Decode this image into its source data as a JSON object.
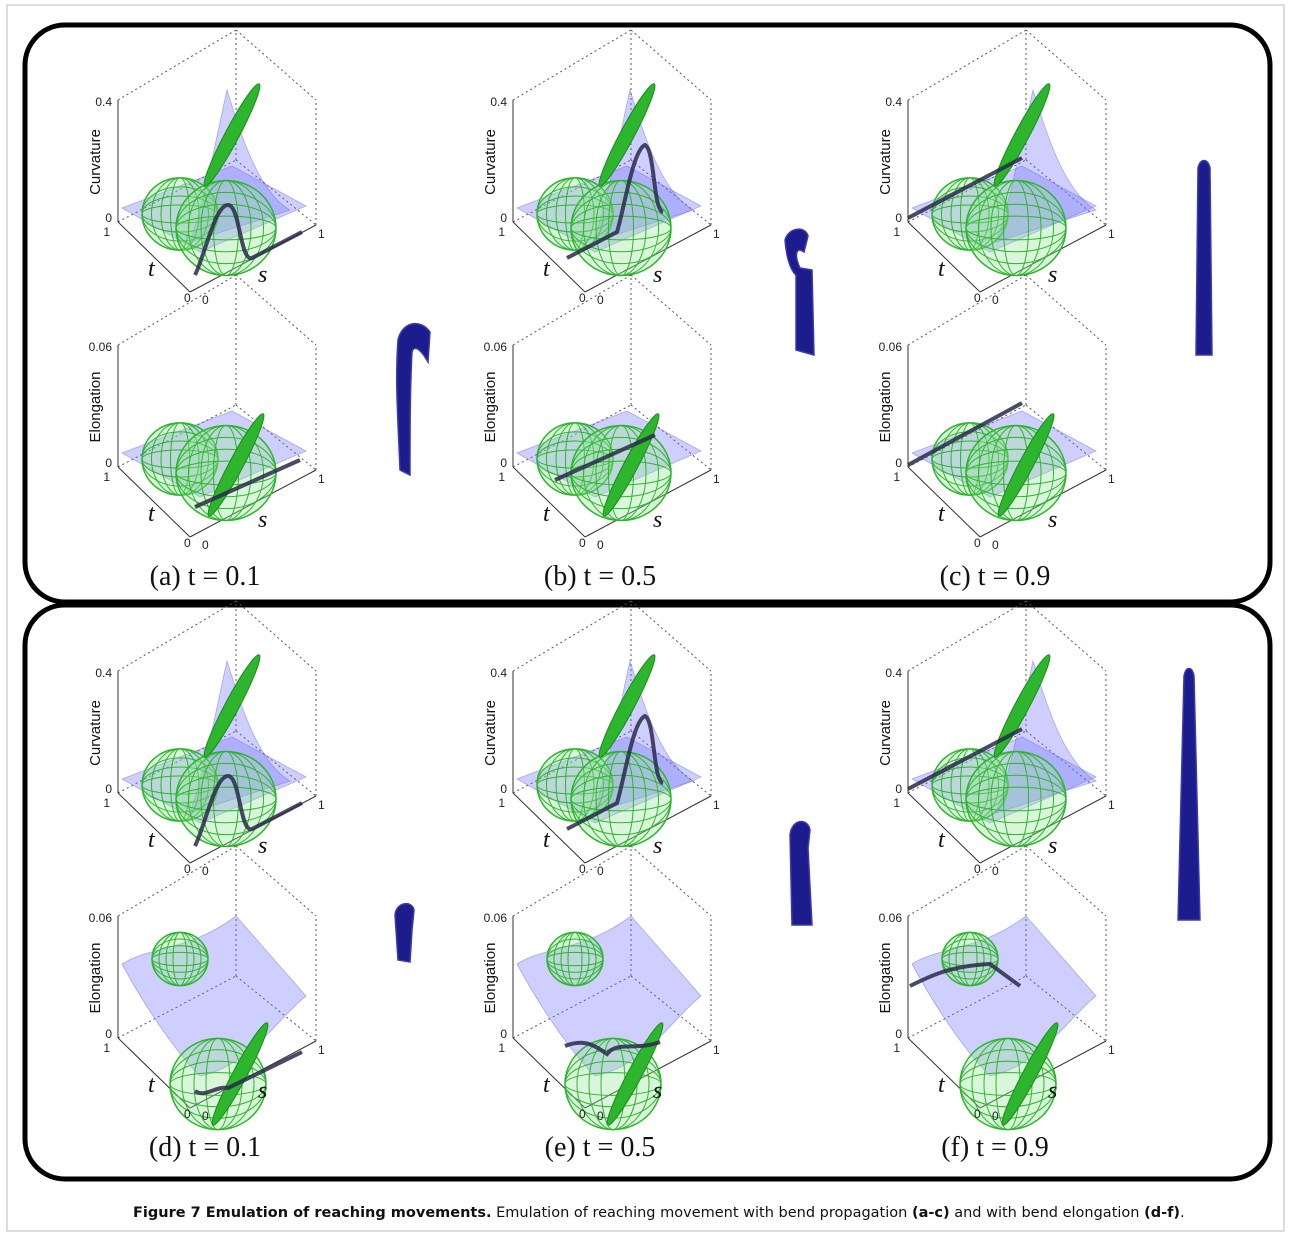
{
  "figure": {
    "subfigures": [
      "(a) t = 0.1",
      "(b) t = 0.5",
      "(c) t = 0.9",
      "(d) t = 0.1",
      "(e) t = 0.5",
      "(f) t = 0.9"
    ],
    "axes": {
      "curvature": {
        "label": "Curvature",
        "z_max": "0.4",
        "z_min": "0"
      },
      "elongation": {
        "label": "Elongation",
        "z_max": "0.06",
        "z_min": "0"
      },
      "t_label": "t",
      "s_label": "s",
      "t_max": "1",
      "t_min": "0",
      "s_min": "0",
      "s_max": "1"
    },
    "caption": {
      "title": "Figure 7 Emulation of reaching movements.",
      "text_1": "Emulation of reaching movement with bend propagation",
      "ref_1": "(a-c)",
      "text_2": "and with bend elongation",
      "ref_2": "(d-f)",
      "text_3": "."
    }
  }
}
